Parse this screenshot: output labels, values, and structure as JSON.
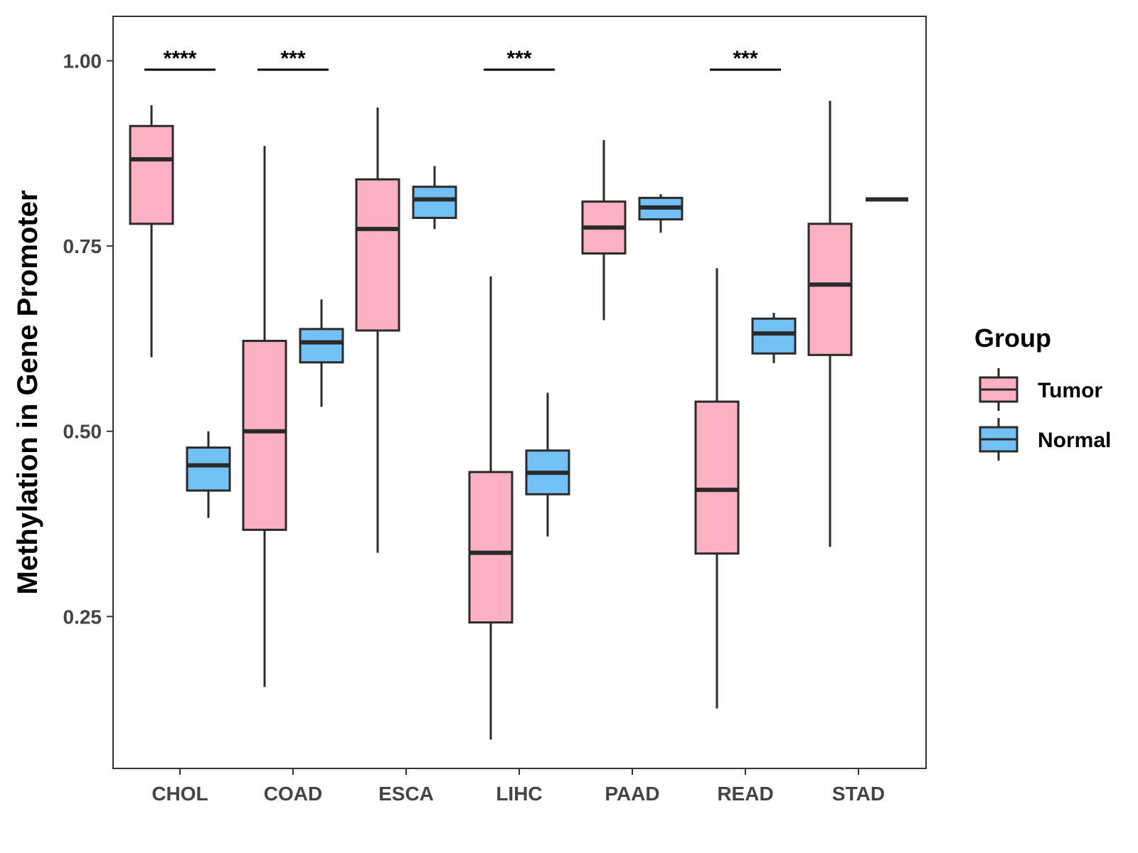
{
  "chart_data": {
    "type": "boxplot",
    "title": "",
    "xlabel": "",
    "ylabel": "Methylation in Gene Promoter",
    "ylim": [
      0.045,
      1.06
    ],
    "yticks": [
      0.25,
      0.5,
      0.75,
      1.0
    ],
    "ytick_labels": [
      "0.25",
      "0.50",
      "0.75",
      "1.00"
    ],
    "categories": [
      "CHOL",
      "COAD",
      "ESCA",
      "LIHC",
      "PAAD",
      "READ",
      "STAD"
    ],
    "legend": {
      "title": "Group",
      "position": "right",
      "entries": [
        {
          "name": "Tumor",
          "color": "#FBB1C2"
        },
        {
          "name": "Normal",
          "color": "#73C0F5"
        }
      ]
    },
    "series": [
      {
        "name": "Tumor",
        "color": "#FBB1C2",
        "boxes": [
          {
            "category": "CHOL",
            "min": 0.6,
            "q1": 0.78,
            "median": 0.867,
            "q3": 0.912,
            "max": 0.94
          },
          {
            "category": "COAD",
            "min": 0.155,
            "q1": 0.367,
            "median": 0.5,
            "q3": 0.622,
            "max": 0.885
          },
          {
            "category": "ESCA",
            "min": 0.336,
            "q1": 0.636,
            "median": 0.773,
            "q3": 0.84,
            "max": 0.937
          },
          {
            "category": "LIHC",
            "min": 0.084,
            "q1": 0.242,
            "median": 0.336,
            "q3": 0.445,
            "max": 0.709
          },
          {
            "category": "PAAD",
            "min": 0.65,
            "q1": 0.74,
            "median": 0.775,
            "q3": 0.81,
            "max": 0.893
          },
          {
            "category": "READ",
            "min": 0.126,
            "q1": 0.335,
            "median": 0.421,
            "q3": 0.54,
            "max": 0.72
          },
          {
            "category": "STAD",
            "min": 0.344,
            "q1": 0.603,
            "median": 0.698,
            "q3": 0.78,
            "max": 0.946
          }
        ]
      },
      {
        "name": "Normal",
        "color": "#73C0F5",
        "boxes": [
          {
            "category": "CHOL",
            "min": 0.383,
            "q1": 0.42,
            "median": 0.454,
            "q3": 0.478,
            "max": 0.5
          },
          {
            "category": "COAD",
            "min": 0.533,
            "q1": 0.593,
            "median": 0.62,
            "q3": 0.638,
            "max": 0.678
          },
          {
            "category": "ESCA",
            "min": 0.773,
            "q1": 0.788,
            "median": 0.813,
            "q3": 0.83,
            "max": 0.858
          },
          {
            "category": "LIHC",
            "min": 0.358,
            "q1": 0.415,
            "median": 0.444,
            "q3": 0.474,
            "max": 0.552
          },
          {
            "category": "PAAD",
            "min": 0.768,
            "q1": 0.786,
            "median": 0.802,
            "q3": 0.815,
            "max": 0.82
          },
          {
            "category": "READ",
            "min": 0.592,
            "q1": 0.605,
            "median": 0.632,
            "q3": 0.652,
            "max": 0.66
          },
          {
            "category": "STAD",
            "min": 0.813,
            "q1": 0.813,
            "median": 0.813,
            "q3": 0.813,
            "max": 0.813
          }
        ]
      }
    ],
    "significance": [
      {
        "category": "CHOL",
        "label": "****",
        "y": 0.988
      },
      {
        "category": "COAD",
        "label": "***",
        "y": 0.988
      },
      {
        "category": "LIHC",
        "label": "***",
        "y": 0.988
      },
      {
        "category": "READ",
        "label": "***",
        "y": 0.988
      }
    ]
  }
}
